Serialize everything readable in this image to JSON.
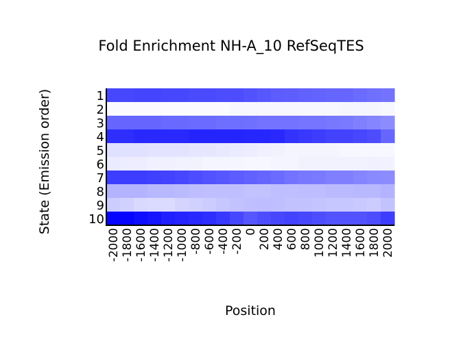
{
  "chart_data": {
    "type": "heatmap",
    "title": "Fold Enrichment NH-A_10 RefSeqTES",
    "xlabel": "Position",
    "ylabel": "State (Emission order)",
    "rows": [
      "1",
      "2",
      "3",
      "4",
      "5",
      "6",
      "7",
      "8",
      "9",
      "10"
    ],
    "columns": [
      -2000,
      -1800,
      -1600,
      -1400,
      -1200,
      -1000,
      -800,
      -600,
      -400,
      -200,
      0,
      200,
      400,
      600,
      800,
      1000,
      1200,
      1400,
      1600,
      1800,
      2000
    ],
    "x_tick_labels": [
      "-2000",
      "-1800",
      "-1600",
      "-1400",
      "-1200",
      "-1000",
      "-800",
      "-600",
      "-400",
      "-200",
      "0",
      "200",
      "400",
      "600",
      "800",
      "1000",
      "1200",
      "1400",
      "1600",
      "1800",
      "2000"
    ],
    "colormap": {
      "low": "#ffffff",
      "high": "#0000ff"
    },
    "value_range": [
      0,
      1
    ],
    "values": [
      [
        0.72,
        0.72,
        0.73,
        0.73,
        0.72,
        0.72,
        0.71,
        0.71,
        0.7,
        0.7,
        0.68,
        0.66,
        0.64,
        0.63,
        0.62,
        0.61,
        0.6,
        0.6,
        0.58,
        0.56,
        0.55
      ],
      [
        0.02,
        0.02,
        0.02,
        0.02,
        0.02,
        0.02,
        0.02,
        0.02,
        0.02,
        0.03,
        0.03,
        0.03,
        0.03,
        0.03,
        0.03,
        0.03,
        0.03,
        0.04,
        0.04,
        0.04,
        0.03
      ],
      [
        0.6,
        0.6,
        0.6,
        0.6,
        0.59,
        0.59,
        0.58,
        0.58,
        0.57,
        0.57,
        0.56,
        0.55,
        0.55,
        0.55,
        0.54,
        0.54,
        0.53,
        0.52,
        0.5,
        0.48,
        0.45
      ],
      [
        0.82,
        0.82,
        0.84,
        0.84,
        0.84,
        0.84,
        0.86,
        0.86,
        0.86,
        0.86,
        0.85,
        0.85,
        0.84,
        0.8,
        0.78,
        0.76,
        0.74,
        0.74,
        0.72,
        0.7,
        0.6
      ],
      [
        0.12,
        0.12,
        0.12,
        0.11,
        0.11,
        0.11,
        0.1,
        0.1,
        0.09,
        0.08,
        0.07,
        0.06,
        0.05,
        0.04,
        0.04,
        0.04,
        0.04,
        0.03,
        0.03,
        0.03,
        0.03
      ],
      [
        0.08,
        0.07,
        0.07,
        0.06,
        0.06,
        0.05,
        0.05,
        0.04,
        0.04,
        0.04,
        0.03,
        0.03,
        0.04,
        0.04,
        0.05,
        0.05,
        0.05,
        0.05,
        0.05,
        0.06,
        0.05
      ],
      [
        0.76,
        0.76,
        0.76,
        0.75,
        0.74,
        0.72,
        0.7,
        0.68,
        0.66,
        0.64,
        0.62,
        0.6,
        0.58,
        0.55,
        0.53,
        0.52,
        0.5,
        0.5,
        0.48,
        0.46,
        0.45
      ],
      [
        0.3,
        0.3,
        0.3,
        0.28,
        0.28,
        0.27,
        0.26,
        0.25,
        0.25,
        0.25,
        0.24,
        0.24,
        0.25,
        0.25,
        0.26,
        0.26,
        0.27,
        0.27,
        0.28,
        0.28,
        0.3
      ],
      [
        0.2,
        0.18,
        0.15,
        0.14,
        0.14,
        0.17,
        0.18,
        0.2,
        0.22,
        0.24,
        0.25,
        0.26,
        0.25,
        0.24,
        0.24,
        0.23,
        0.22,
        0.22,
        0.21,
        0.2,
        0.24
      ],
      [
        0.98,
        0.98,
        0.95,
        0.92,
        0.88,
        0.86,
        0.84,
        0.82,
        0.78,
        0.72,
        0.66,
        0.7,
        0.72,
        0.74,
        0.72,
        0.7,
        0.68,
        0.68,
        0.68,
        0.7,
        0.76
      ]
    ]
  }
}
